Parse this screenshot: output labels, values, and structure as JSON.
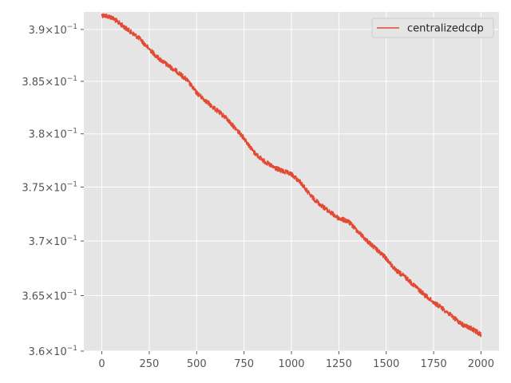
{
  "chart_data": {
    "type": "line",
    "title": "",
    "xlabel": "",
    "ylabel": "",
    "xlim": [
      -95,
      2095
    ],
    "ylim": [
      0.36,
      0.3917
    ],
    "y_scale": "log",
    "grid": true,
    "legend_position": "top-right",
    "x_ticks": [
      0,
      250,
      500,
      750,
      1000,
      1250,
      1500,
      1750,
      2000
    ],
    "x_tick_labels": [
      "0",
      "250",
      "500",
      "750",
      "1000",
      "1250",
      "1500",
      "1750",
      "2000"
    ],
    "y_ticks": [
      0.36,
      0.365,
      0.37,
      0.375,
      0.38,
      0.385,
      0.39
    ],
    "y_tick_labels": [
      {
        "mantissa": "3.6",
        "exponent": "−1"
      },
      {
        "mantissa": "3.65",
        "exponent": "−1"
      },
      {
        "mantissa": "3.7",
        "exponent": "−1"
      },
      {
        "mantissa": "3.75",
        "exponent": "−1"
      },
      {
        "mantissa": "3.8",
        "exponent": "−1"
      },
      {
        "mantissa": "3.85",
        "exponent": "−1"
      },
      {
        "mantissa": "3.9",
        "exponent": "−1"
      }
    ],
    "tick_times": "×10",
    "colors": {
      "background": "#e5e5e5",
      "grid": "#ffffff",
      "series": "#e24a33",
      "tick_text": "#555555"
    },
    "series": [
      {
        "name": "centralizedcdp",
        "x": [
          0,
          50,
          100,
          150,
          200,
          250,
          300,
          350,
          400,
          450,
          500,
          550,
          600,
          650,
          700,
          750,
          800,
          850,
          900,
          950,
          1000,
          1050,
          1100,
          1150,
          1200,
          1250,
          1300,
          1350,
          1400,
          1450,
          1500,
          1550,
          1600,
          1650,
          1700,
          1750,
          1800,
          1850,
          1900,
          1950,
          2000
        ],
        "y": [
          0.3914,
          0.3912,
          0.3905,
          0.3898,
          0.3891,
          0.3881,
          0.3872,
          0.3865,
          0.3859,
          0.3851,
          0.3839,
          0.3831,
          0.3823,
          0.3816,
          0.3806,
          0.3796,
          0.3783,
          0.3775,
          0.3769,
          0.3765,
          0.3762,
          0.3754,
          0.3742,
          0.3734,
          0.3727,
          0.3721,
          0.3718,
          0.3709,
          0.37,
          0.3692,
          0.3684,
          0.3673,
          0.3667,
          0.3659,
          0.3651,
          0.3644,
          0.3638,
          0.3631,
          0.3624,
          0.362,
          0.3615
        ]
      }
    ]
  }
}
